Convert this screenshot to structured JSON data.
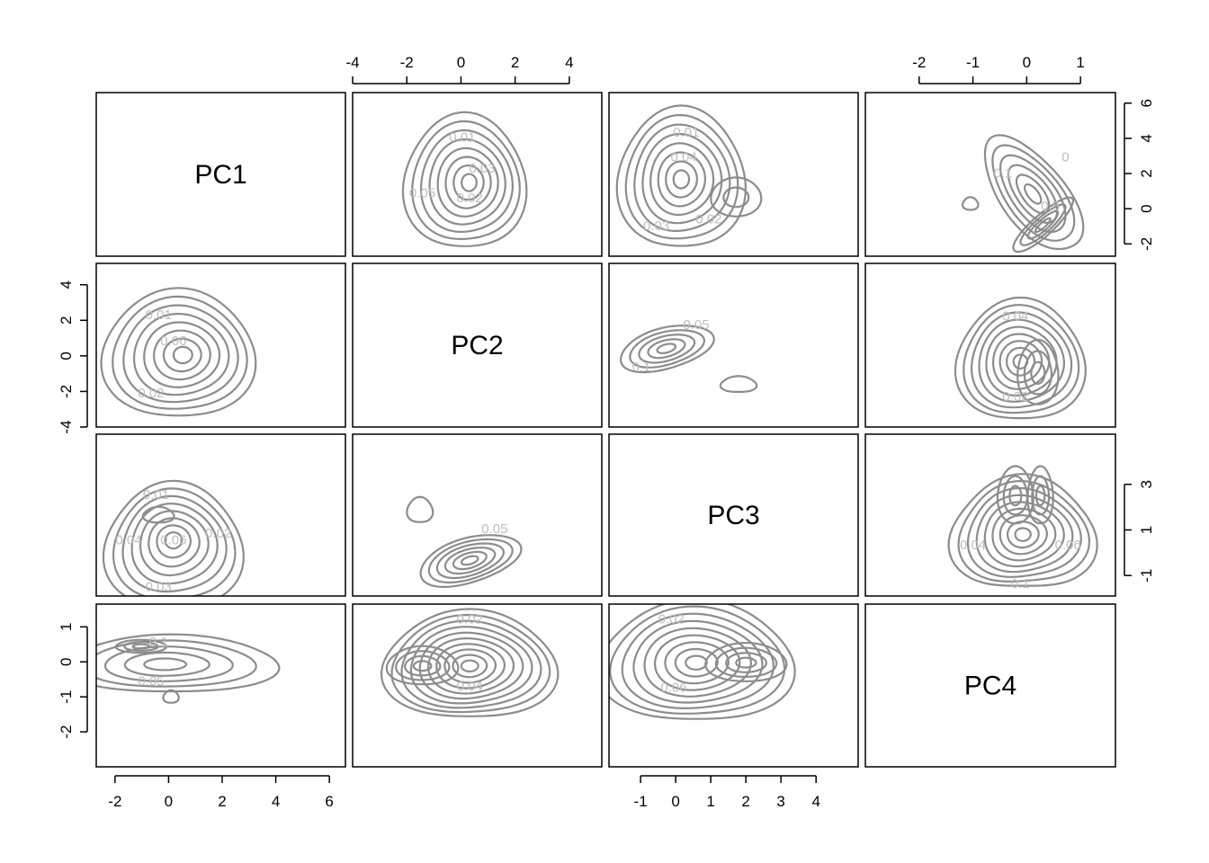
{
  "chart_data": {
    "type": "contour",
    "layout": "scatterplot-matrix",
    "variables": [
      "PC1",
      "PC2",
      "PC3",
      "PC4"
    ],
    "axis_ticks": {
      "PC1": [
        "-2",
        "0",
        "2",
        "4",
        "6"
      ],
      "PC2": [
        "-4",
        "-2",
        "0",
        "2",
        "4"
      ],
      "PC3": [
        "-1",
        "0",
        "1",
        "2",
        "3",
        "4"
      ],
      "PC4": [
        "-2",
        "-1",
        "0",
        "1"
      ]
    },
    "axis_ranges": {
      "PC1": [
        -2.7,
        6.6
      ],
      "PC2": [
        -4.0,
        5.2
      ],
      "PC3": [
        -1.9,
        5.2
      ],
      "PC4": [
        -3.0,
        1.65
      ]
    },
    "tick_values": {
      "PC1": [
        -2,
        0,
        2,
        4,
        6
      ],
      "PC2": [
        -4,
        -2,
        0,
        2,
        4
      ],
      "PC3": [
        -1,
        0,
        1,
        2,
        3,
        4
      ],
      "PC4": [
        -2,
        -1,
        0,
        1
      ]
    },
    "right_axis_ticks": {
      "row1": [
        "-2",
        "0",
        "2",
        "4",
        "6"
      ],
      "row3": [
        "-1",
        "1",
        "3"
      ]
    },
    "right_axis_values": {
      "row1": [
        -2,
        0,
        2,
        4,
        6
      ],
      "row3": [
        -1,
        1,
        3
      ]
    },
    "contour_labels": {
      "r1c2": [
        "0.01",
        "0.03",
        "0.05",
        "0.02"
      ],
      "r1c3": [
        "0.01",
        "0.04",
        "0.03",
        "0.02"
      ],
      "r1c4": [
        "0.1",
        "0.5",
        "0"
      ],
      "r2c1": [
        "0.01",
        "0.06",
        "0.02"
      ],
      "r2c3": [
        "0.05",
        "0.1"
      ],
      "r2c4": [
        "0.04",
        "0.02"
      ],
      "r3c1": [
        "0.01",
        "0.04",
        "0.06",
        "0.02",
        "0.03"
      ],
      "r3c2": [
        "0.05"
      ],
      "r3c4": [
        "0.04",
        "0.06",
        "0.1"
      ],
      "r4c1": [
        "0.1",
        "0.05"
      ],
      "r4c2": [
        "0.02",
        "0.04"
      ],
      "r4c3": [
        "0.02",
        "0.06"
      ]
    },
    "grid": false,
    "legend": "none"
  }
}
